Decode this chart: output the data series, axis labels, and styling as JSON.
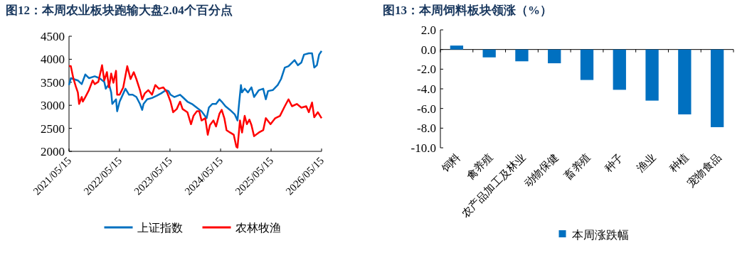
{
  "chart_data": [
    {
      "type": "line",
      "title": "图12：本周农业板块跑输大盘2.04个百分点",
      "xlim": [
        "2021-05-15",
        "2026-05-15"
      ],
      "ylim": [
        2000,
        4500
      ],
      "yticks": [
        2000,
        2500,
        3000,
        3500,
        4000,
        4500
      ],
      "xticks": [
        {
          "value": "2021-05-15",
          "label": "2021/05/15"
        },
        {
          "value": "2022-05-15",
          "label": "2022/05/15"
        },
        {
          "value": "2023-05-15",
          "label": "2023/05/15"
        },
        {
          "value": "2024-05-15",
          "label": "2024/05/15"
        },
        {
          "value": "2025-05-15",
          "label": "2025/05/15"
        },
        {
          "value": "2026-05-15",
          "label": "2026/05/15"
        }
      ],
      "legend": "bottom",
      "series": [
        {
          "name": "上证指数",
          "color": "#0070c0",
          "x": [
            "2021-05-15",
            "2021-05-28",
            "2021-07-18",
            "2021-08-15",
            "2021-09-10",
            "2021-10-06",
            "2021-11-17",
            "2021-12-21",
            "2022-01-25",
            "2022-02-05",
            "2022-02-28",
            "2022-03-16",
            "2022-03-24",
            "2022-04-20",
            "2022-04-28",
            "2022-05-16",
            "2022-06-27",
            "2022-07-23",
            "2022-08-18",
            "2022-09-14",
            "2022-10-10",
            "2022-10-26",
            "2022-11-05",
            "2022-12-01",
            "2023-01-05",
            "2023-02-09",
            "2023-03-12",
            "2023-04-16",
            "2023-05-04",
            "2023-05-19",
            "2023-06-15",
            "2023-07-27",
            "2023-08-14",
            "2023-09-18",
            "2023-10-21",
            "2023-11-25",
            "2023-12-29",
            "2024-02-04",
            "2024-02-20",
            "2024-03-16",
            "2024-04-12",
            "2024-05-07",
            "2024-05-23",
            "2024-06-19",
            "2024-07-22",
            "2024-08-26",
            "2024-09-14",
            "2024-09-26",
            "2024-10-09",
            "2024-10-17",
            "2024-11-05",
            "2024-11-29",
            "2024-12-24",
            "2025-01-12",
            "2025-02-16",
            "2025-03-19",
            "2025-04-07",
            "2025-04-23",
            "2025-05-27",
            "2025-07-02",
            "2025-07-26",
            "2025-08-22",
            "2025-09-18",
            "2025-11-01",
            "2025-11-25",
            "2025-12-20",
            "2026-01-08",
            "2026-02-12",
            "2026-03-07",
            "2026-03-23",
            "2026-04-11",
            "2026-04-27",
            "2026-05-15"
          ],
          "values": [
            3440,
            3590,
            3540,
            3460,
            3670,
            3590,
            3630,
            3590,
            3510,
            3360,
            3460,
            3280,
            3030,
            3130,
            2870,
            3080,
            3360,
            3230,
            3230,
            3180,
            3030,
            2900,
            3030,
            3130,
            3160,
            3210,
            3260,
            3330,
            3310,
            3230,
            3180,
            3230,
            3180,
            3080,
            3030,
            2950,
            2870,
            2720,
            2950,
            3030,
            3030,
            3130,
            3080,
            2980,
            2900,
            2800,
            2670,
            3050,
            3440,
            3280,
            3360,
            3280,
            3390,
            3180,
            3330,
            3360,
            3130,
            3310,
            3330,
            3440,
            3570,
            3820,
            3850,
            3980,
            3870,
            3930,
            4100,
            4130,
            4130,
            3820,
            3870,
            4100,
            4180
          ]
        },
        {
          "name": "农林牧渔",
          "color": "#ff0000",
          "x": [
            "2021-05-15",
            "2021-05-28",
            "2021-06-15",
            "2021-07-03",
            "2021-07-18",
            "2021-07-27",
            "2021-08-15",
            "2021-08-23",
            "2021-09-10",
            "2021-10-06",
            "2021-11-02",
            "2021-11-17",
            "2021-12-13",
            "2022-01-09",
            "2022-01-25",
            "2022-02-13",
            "2022-02-28",
            "2022-03-16",
            "2022-04-01",
            "2022-04-20",
            "2022-04-28",
            "2022-05-16",
            "2022-06-11",
            "2022-07-10",
            "2022-08-03",
            "2022-08-26",
            "2022-09-14",
            "2022-10-10",
            "2022-10-26",
            "2022-11-14",
            "2022-12-09",
            "2023-01-05",
            "2023-01-29",
            "2023-02-24",
            "2023-03-28",
            "2023-04-24",
            "2023-05-19",
            "2023-06-07",
            "2023-07-03",
            "2023-07-27",
            "2023-08-14",
            "2023-09-18",
            "2023-10-14",
            "2023-11-01",
            "2023-11-25",
            "2023-12-13",
            "2023-12-29",
            "2024-01-25",
            "2024-02-12",
            "2024-02-28",
            "2024-03-24",
            "2024-04-12",
            "2024-05-07",
            "2024-05-23",
            "2024-06-11",
            "2024-06-27",
            "2024-07-22",
            "2024-08-18",
            "2024-09-06",
            "2024-09-14",
            "2024-10-02",
            "2024-10-17",
            "2024-11-05",
            "2024-11-21",
            "2024-12-09",
            "2024-12-24",
            "2025-01-12",
            "2025-02-16",
            "2025-03-19",
            "2025-04-07",
            "2025-05-11",
            "2025-06-14",
            "2025-07-18",
            "2025-08-22",
            "2025-09-18",
            "2025-10-13",
            "2025-11-17",
            "2025-12-20",
            "2026-01-24",
            "2026-02-12",
            "2026-03-07",
            "2026-03-23",
            "2026-04-18",
            "2026-05-15"
          ],
          "values": [
            3850,
            3850,
            3590,
            3410,
            3280,
            3030,
            3180,
            3080,
            3180,
            3330,
            3540,
            3460,
            3510,
            3870,
            3540,
            3720,
            3390,
            3690,
            3490,
            3750,
            3230,
            3230,
            3390,
            3850,
            3570,
            3720,
            3570,
            3330,
            3130,
            3260,
            3330,
            3230,
            3440,
            3360,
            3390,
            3280,
            3080,
            2850,
            2920,
            3080,
            2920,
            2850,
            2590,
            2770,
            2870,
            2870,
            2670,
            2720,
            2360,
            2570,
            2670,
            2540,
            2820,
            2900,
            2720,
            2460,
            2410,
            2360,
            2100,
            2080,
            2670,
            2410,
            2770,
            2590,
            2690,
            2570,
            2330,
            2410,
            2460,
            2720,
            2590,
            2720,
            2770,
            2980,
            3130,
            2980,
            3030,
            2950,
            2980,
            2850,
            3060,
            2740,
            2850,
            2720
          ]
        }
      ]
    },
    {
      "type": "bar",
      "title": "图13：本周饲料板块领涨（%）",
      "categories": [
        "饲料",
        "禽养殖",
        "农产品加工及林业",
        "动物保健",
        "畜养殖",
        "种子",
        "渔业",
        "种植",
        "宠物食品"
      ],
      "ylim": [
        -10,
        2
      ],
      "yticks": [
        {
          "value": 2,
          "label": "2.0"
        },
        {
          "value": 0,
          "label": "0.0"
        },
        {
          "value": -2,
          "label": "-2.0"
        },
        {
          "value": -4,
          "label": "-4.0"
        },
        {
          "value": -6,
          "label": "-6.0"
        },
        {
          "value": -8,
          "label": "-8.0"
        },
        {
          "value": -10,
          "label": "-10.0"
        }
      ],
      "legend": "bottom",
      "series": [
        {
          "name": "本周涨跌幅",
          "color": "#0070c0",
          "values": [
            0.4,
            -0.8,
            -1.2,
            -1.4,
            -3.1,
            -4.1,
            -5.2,
            -6.6,
            -7.9
          ]
        }
      ]
    }
  ]
}
